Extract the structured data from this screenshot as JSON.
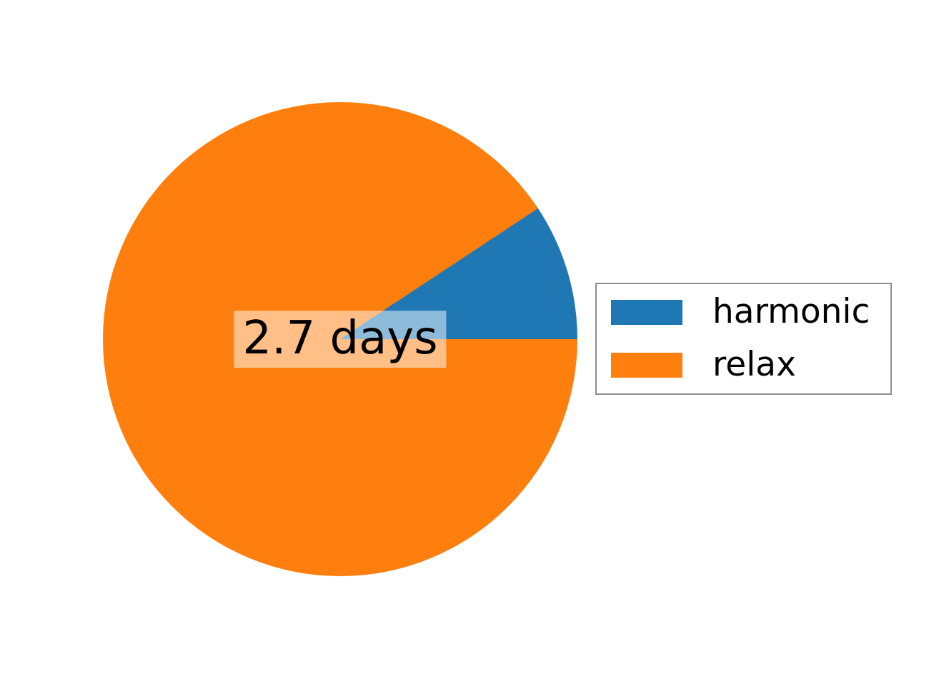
{
  "figure": {
    "background": "#ffffff"
  },
  "center_label": {
    "text": "2.7 days",
    "background": "rgba(255,255,255,0.5)",
    "text_color": "#000000"
  },
  "legend": {
    "border_color": "#8f8f8f",
    "entries": [
      {
        "label": "harmonic",
        "color": "#1f77b4"
      },
      {
        "label": "relax",
        "color": "#ff7f0e"
      }
    ]
  },
  "chart_data": {
    "type": "pie",
    "labels": [
      "harmonic",
      "relax"
    ],
    "values": [
      9.3,
      90.7
    ],
    "unit": "percent_of_total",
    "colors": [
      "#1f77b4",
      "#ff7f0e"
    ],
    "start_angle_deg": 0,
    "direction": "counterclockwise",
    "harmonic_slice_span_deg": 33.5,
    "center_annotation": "2.7 days",
    "title": "",
    "legend_position": "center right",
    "legend_entries": [
      "harmonic",
      "relax"
    ]
  }
}
